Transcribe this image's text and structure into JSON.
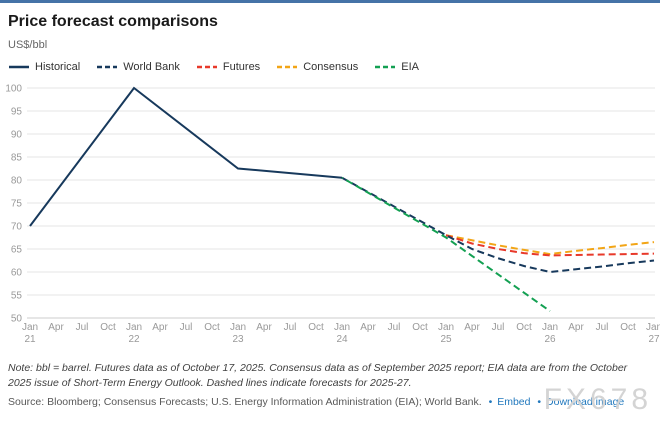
{
  "header": {
    "title": "Price forecast comparisons",
    "subtitle": "US$/bbl"
  },
  "footer": {
    "note": "Note: bbl = barrel. Futures data as of October 17, 2025. Consensus data as of September 2025 report; EIA data are from the October 2025 issue of Short-Term Energy Outlook. Dashed lines indicate forecasts for 2025-27.",
    "source": "Source: Bloomberg; Consensus Forecasts; U.S. Energy Information Administration (EIA); World Bank.",
    "bullet": "•",
    "embed_label": "Embed",
    "download_label": "Download image",
    "watermark": "FX678"
  },
  "chart_data": {
    "type": "line",
    "title": "Price forecast comparisons",
    "ylabel": "US$/bbl",
    "ylim": [
      50,
      100
    ],
    "grid": true,
    "legend_position": "top",
    "y_ticks": [
      50,
      55,
      60,
      65,
      70,
      75,
      80,
      85,
      90,
      95,
      100
    ],
    "x_ticks": [
      {
        "m": "Jan",
        "y": "21"
      },
      {
        "m": "Apr"
      },
      {
        "m": "Jul"
      },
      {
        "m": "Oct"
      },
      {
        "m": "Jan",
        "y": "22"
      },
      {
        "m": "Apr"
      },
      {
        "m": "Jul"
      },
      {
        "m": "Oct"
      },
      {
        "m": "Jan",
        "y": "23"
      },
      {
        "m": "Apr"
      },
      {
        "m": "Jul"
      },
      {
        "m": "Oct"
      },
      {
        "m": "Jan",
        "y": "24"
      },
      {
        "m": "Apr"
      },
      {
        "m": "Jul"
      },
      {
        "m": "Oct"
      },
      {
        "m": "Jan",
        "y": "25"
      },
      {
        "m": "Apr"
      },
      {
        "m": "Jul"
      },
      {
        "m": "Oct"
      },
      {
        "m": "Jan",
        "y": "26"
      },
      {
        "m": "Apr"
      },
      {
        "m": "Jul"
      },
      {
        "m": "Oct"
      },
      {
        "m": "Jan",
        "y": "27"
      }
    ],
    "colors": {
      "grid": "#e6e6e6",
      "axis_line": "#cccccc",
      "tick_text": "#999999",
      "accent_top_bar": "#4573a7",
      "link": "#2178bd"
    },
    "series": [
      {
        "id": "historical",
        "name": "Historical",
        "color": "#17395c",
        "dash": null,
        "x": [
          0,
          4,
          8,
          12
        ],
        "values": [
          70,
          100,
          82.5,
          80.5
        ]
      },
      {
        "id": "worldbank",
        "name": "World Bank",
        "color": "#17395c",
        "dash": "7,4",
        "x": [
          12,
          16,
          17,
          18,
          19,
          20,
          21,
          22,
          23,
          24
        ],
        "values": [
          80.5,
          68,
          65,
          63,
          61.3,
          60,
          60.6,
          61.2,
          61.9,
          62.5
        ]
      },
      {
        "id": "futures",
        "name": "Futures",
        "color": "#e8392a",
        "dash": "7,4",
        "x": [
          16,
          17,
          18,
          19,
          20,
          21,
          22,
          23,
          24
        ],
        "values": [
          68,
          66.2,
          65,
          64.1,
          63.6,
          63.7,
          63.8,
          63.9,
          64
        ]
      },
      {
        "id": "consensus",
        "name": "Consensus",
        "color": "#f2a516",
        "dash": "7,4",
        "x": [
          16,
          17,
          18,
          19,
          20,
          21,
          22,
          23,
          24
        ],
        "values": [
          68,
          66.9,
          65.8,
          64.8,
          63.9,
          64.6,
          65.2,
          65.9,
          66.5
        ]
      },
      {
        "id": "eia",
        "name": "EIA",
        "color": "#13a052",
        "dash": "7,4",
        "dashoffset": 6,
        "x": [
          12,
          16,
          17,
          18,
          19,
          20
        ],
        "values": [
          80.5,
          67.5,
          63.5,
          59.5,
          55.5,
          51.5
        ]
      }
    ],
    "draw_order": [
      3,
      2,
      1,
      4,
      0
    ]
  }
}
